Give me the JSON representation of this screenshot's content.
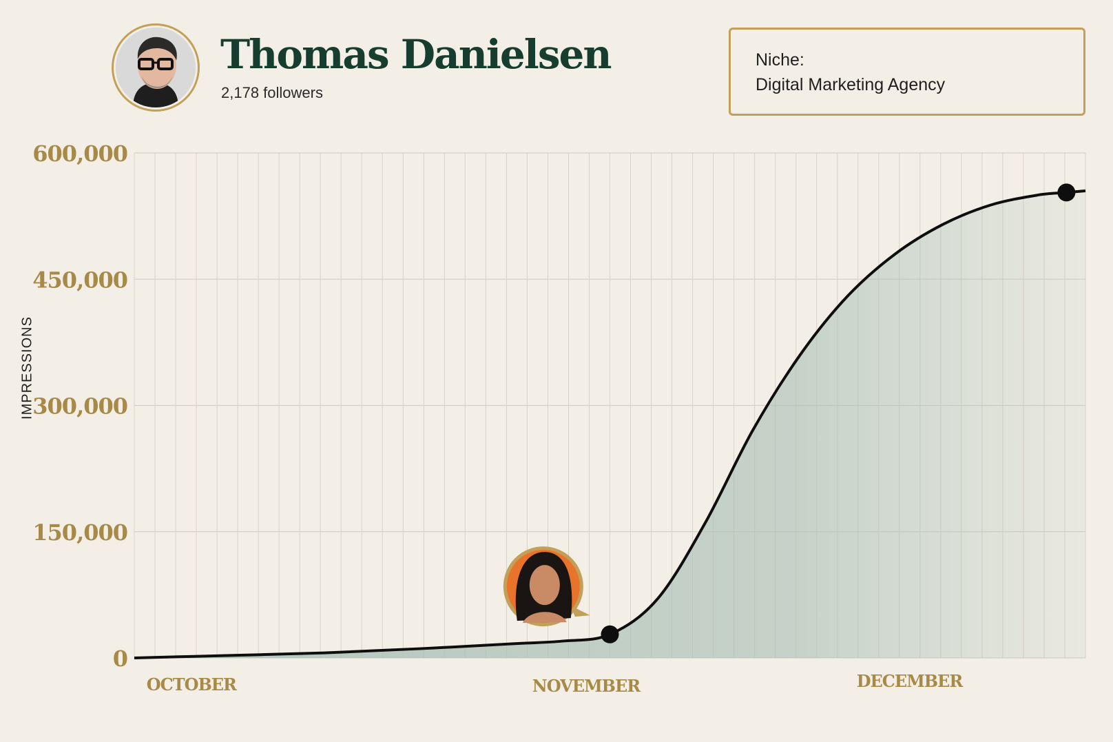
{
  "profile": {
    "name": "Thomas Danielsen",
    "followers": "2,178 followers",
    "avatar_icon": "man-with-glasses-avatar"
  },
  "niche": {
    "label": "Niche:",
    "value": "Digital Marketing Agency"
  },
  "colors": {
    "brand_green": "#173d2e",
    "gold": "#c3a05a",
    "tick_gold": "#a88a48",
    "fill_sage": "#a9bfb6",
    "background": "#f3efe6"
  },
  "chart_data": {
    "type": "area",
    "ylabel": "IMPRESSIONS",
    "xlabel": "",
    "ylim": [
      0,
      600000
    ],
    "yticks": [
      0,
      150000,
      300000,
      450000,
      600000
    ],
    "ytick_labels": [
      "0",
      "150,000",
      "300,000",
      "450,000",
      "600,000"
    ],
    "month_labels": [
      "OCTOBER",
      "NOVEMBER",
      "DECEMBER"
    ],
    "grid": true,
    "x": [
      0,
      0.1,
      0.2,
      0.3,
      0.4,
      0.45,
      0.5,
      0.55,
      0.6,
      0.65,
      0.7,
      0.75,
      0.8,
      0.85,
      0.9,
      0.95,
      0.98,
      1.0
    ],
    "values": [
      0,
      3000,
      6000,
      11000,
      17000,
      20000,
      28000,
      70000,
      160000,
      270000,
      360000,
      430000,
      480000,
      515000,
      538000,
      550000,
      553000,
      555000
    ],
    "markers": [
      {
        "x": 0.5,
        "value": 28000
      },
      {
        "x": 0.98,
        "value": 553000
      }
    ],
    "annotation": {
      "icon": "woman-portrait-avatar",
      "x": 0.43,
      "value": 85000
    }
  }
}
